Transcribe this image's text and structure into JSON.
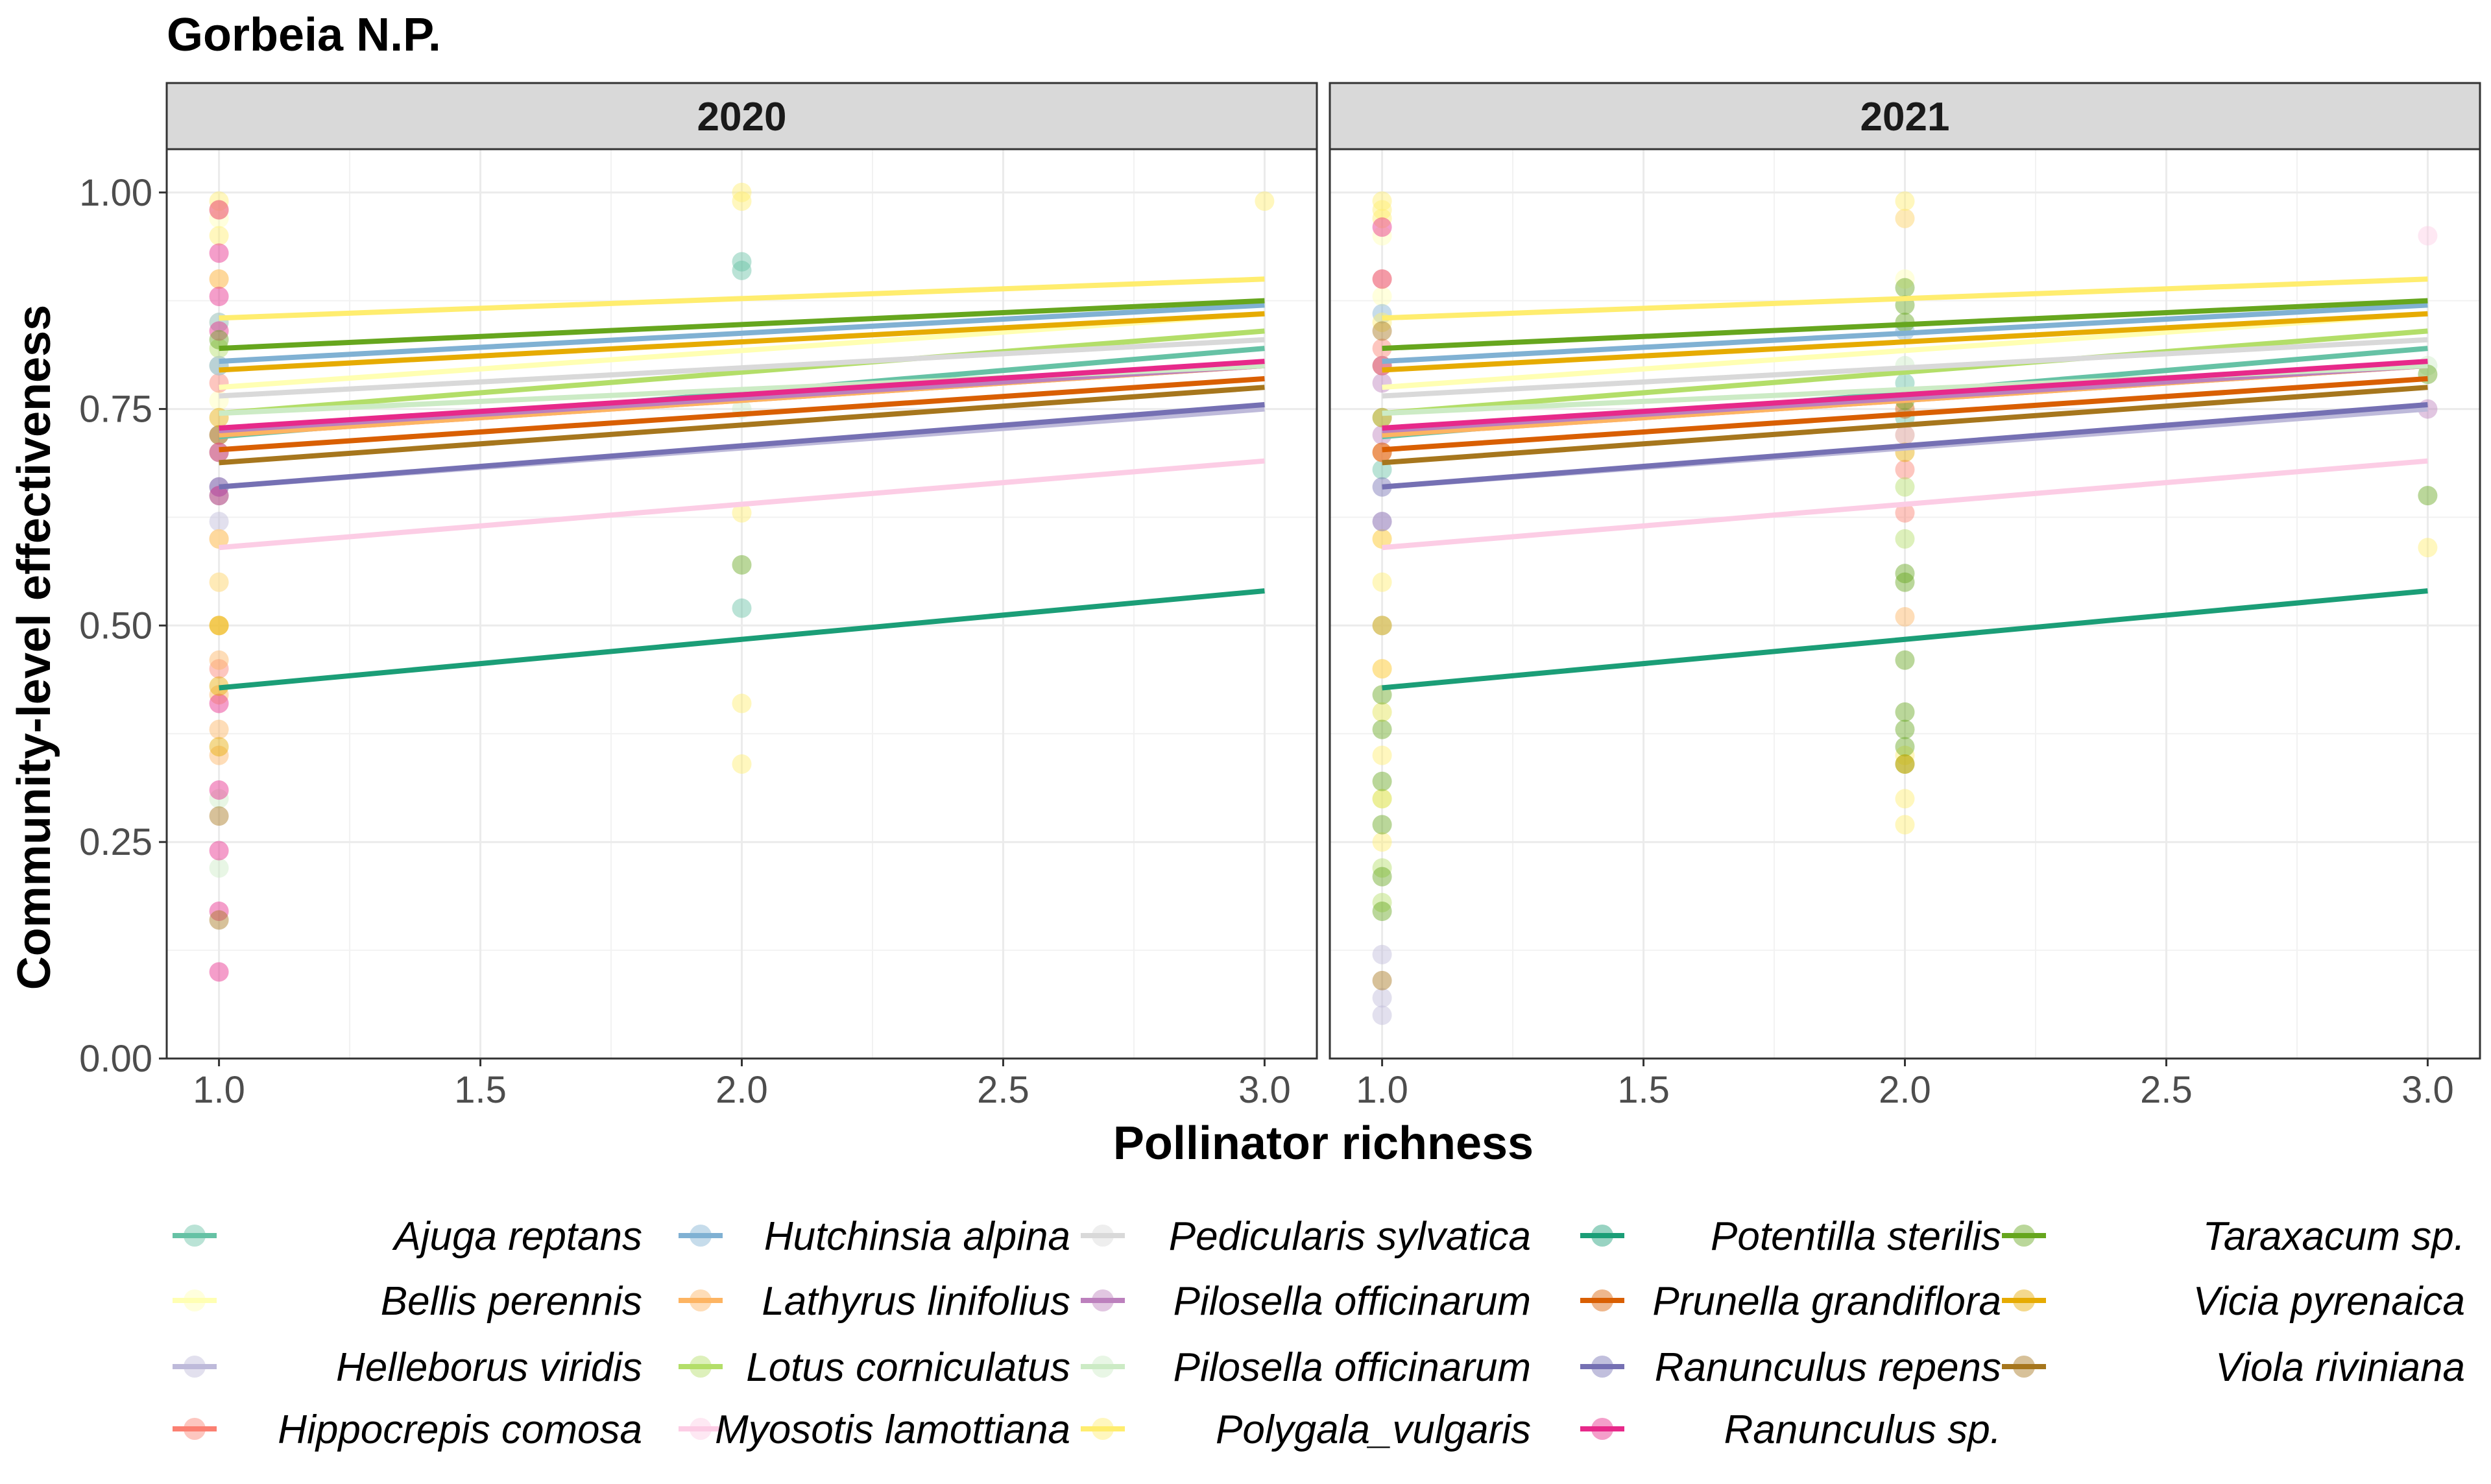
{
  "chart_data": {
    "type": "scatter",
    "title": "Gorbeia N.P.",
    "xlabel": "Pollinator richness",
    "ylabel": "Community-level effectiveness",
    "xlim": [
      0.9,
      3.1
    ],
    "ylim": [
      0,
      1.05
    ],
    "x_ticks": [
      1.0,
      1.5,
      2.0,
      2.5,
      3.0
    ],
    "x_tick_labels": [
      "1.0",
      "1.5",
      "2.0",
      "2.5",
      "3.0"
    ],
    "y_ticks": [
      0.0,
      0.25,
      0.5,
      0.75,
      1.0
    ],
    "y_tick_labels": [
      "0.00",
      "0.25",
      "0.50",
      "0.75",
      "1.00"
    ],
    "grid": true,
    "legend_position": "bottom",
    "panels": [
      "2020",
      "2021"
    ],
    "series": [
      {
        "name": "Ajuga reptans",
        "color": "#66C2A5",
        "fit": [
          0.718,
          0.82
        ],
        "points": {
          "2020": [
            [
              1,
              0.72
            ],
            [
              1,
              0.65
            ],
            [
              1,
              0.8
            ],
            [
              2,
              0.92
            ],
            [
              2,
              0.91
            ],
            [
              2,
              0.52
            ]
          ],
          "2021": [
            [
              1,
              0.74
            ],
            [
              1,
              0.68
            ],
            [
              2,
              0.78
            ],
            [
              2,
              0.74
            ]
          ]
        }
      },
      {
        "name": "Bellis perennis",
        "color": "#FFFFB3",
        "fit": [
          0.775,
          0.86
        ],
        "points": {
          "2020": [
            [
              1,
              0.97
            ],
            [
              1,
              0.85
            ],
            [
              1,
              0.76
            ],
            [
              1,
              0.6
            ]
          ],
          "2021": [
            [
              1,
              0.95
            ],
            [
              1,
              0.88
            ],
            [
              1,
              0.7
            ],
            [
              2,
              0.9
            ]
          ]
        }
      },
      {
        "name": "Helleborus viridis",
        "color": "#BEBADA",
        "fit": [
          0.66,
          0.75
        ],
        "points": {
          "2020": [
            [
              1,
              0.7
            ],
            [
              1,
              0.62
            ]
          ],
          "2021": [
            [
              1,
              0.12
            ],
            [
              1,
              0.07
            ],
            [
              1,
              0.05
            ],
            [
              1,
              0.5
            ]
          ]
        }
      },
      {
        "name": "Hippocrepis comosa",
        "color": "#FB8072",
        "fit": [
          0.72,
          0.8
        ],
        "points": {
          "2020": [
            [
              1,
              0.9
            ],
            [
              1,
              0.78
            ],
            [
              1,
              0.6
            ],
            [
              1,
              0.45
            ]
          ],
          "2021": [
            [
              1,
              0.82
            ],
            [
              1,
              0.7
            ],
            [
              2,
              0.72
            ],
            [
              2,
              0.68
            ],
            [
              2,
              0.63
            ]
          ]
        }
      },
      {
        "name": "Hutchinsia alpina",
        "color": "#80B1D3",
        "fit": [
          0.805,
          0.87
        ],
        "points": {
          "2020": [
            [
              1,
              0.85
            ],
            [
              1,
              0.8
            ]
          ],
          "2021": [
            [
              1,
              0.86
            ],
            [
              1,
              0.8
            ],
            [
              2,
              0.84
            ]
          ]
        }
      },
      {
        "name": "Lathyrus linifolius",
        "color": "#FDB462",
        "fit": [
          0.72,
          0.8
        ],
        "points": {
          "2020": [
            [
              1,
              0.5
            ],
            [
              1,
              0.46
            ],
            [
              1,
              0.42
            ],
            [
              1,
              0.38
            ],
            [
              1,
              0.35
            ]
          ],
          "2021": [
            [
              1,
              0.6
            ],
            [
              1,
              0.45
            ],
            [
              2,
              0.51
            ]
          ]
        }
      },
      {
        "name": "Lotus corniculatus",
        "color": "#B3DE69",
        "fit": [
          0.745,
          0.84
        ],
        "points": {
          "2020": [
            [
              1,
              0.82
            ],
            [
              1,
              0.7
            ]
          ],
          "2021": [
            [
              1,
              0.22
            ],
            [
              1,
              0.18
            ],
            [
              1,
              0.3
            ],
            [
              2,
              0.66
            ],
            [
              2,
              0.6
            ]
          ]
        }
      },
      {
        "name": "Myosotis lamottiana",
        "color": "#FCCDE5",
        "fit": [
          0.59,
          0.69
        ],
        "points": {
          "2020": [
            [
              1,
              0.6
            ],
            [
              1,
              0.55
            ]
          ],
          "2021": [
            [
              1,
              0.62
            ],
            [
              2,
              0.97
            ],
            [
              3,
              0.95
            ]
          ]
        }
      },
      {
        "name": "Pedicularis sylvatica",
        "color": "#D9D9D9",
        "fit": [
          0.765,
          0.83
        ],
        "points": {
          "2020": [
            [
              1,
              0.8
            ],
            [
              1,
              0.7
            ]
          ],
          "2021": [
            [
              1,
              0.8
            ],
            [
              2,
              0.72
            ]
          ]
        }
      },
      {
        "name": "Pilosella officinarum",
        "color": "#BC80BD",
        "fit": [
          0.725,
          0.8
        ],
        "points": {
          "2020": [
            [
              1,
              0.66
            ]
          ],
          "2021": [
            [
              1,
              0.78
            ],
            [
              1,
              0.72
            ],
            [
              3,
              0.75
            ]
          ]
        }
      },
      {
        "name": "Pilosella officinarum",
        "color": "#CCEBC5",
        "fit": [
          0.745,
          0.8
        ],
        "points": {
          "2020": [
            [
              1,
              0.22
            ],
            [
              1,
              0.3
            ],
            [
              2,
              0.75
            ]
          ],
          "2021": [
            [
              1,
              0.5
            ],
            [
              1,
              0.4
            ],
            [
              2,
              0.8
            ],
            [
              3,
              0.8
            ]
          ]
        }
      },
      {
        "name": "Polygala_vulgaris",
        "color": "#FFED6F",
        "fit": [
          0.855,
          0.9
        ],
        "points": {
          "2020": [
            [
              1,
              0.99
            ],
            [
              1,
              0.98
            ],
            [
              1,
              0.95
            ],
            [
              1,
              0.9
            ],
            [
              1,
              0.6
            ],
            [
              1,
              0.55
            ],
            [
              1,
              0.5
            ],
            [
              2,
              1.0
            ],
            [
              2,
              0.99
            ],
            [
              2,
              0.41
            ],
            [
              2,
              0.34
            ],
            [
              2,
              0.63
            ],
            [
              3,
              0.99
            ]
          ],
          "2021": [
            [
              1,
              0.99
            ],
            [
              1,
              0.98
            ],
            [
              1,
              0.97
            ],
            [
              1,
              0.9
            ],
            [
              1,
              0.85
            ],
            [
              1,
              0.8
            ],
            [
              1,
              0.6
            ],
            [
              1,
              0.55
            ],
            [
              1,
              0.45
            ],
            [
              1,
              0.4
            ],
            [
              1,
              0.35
            ],
            [
              1,
              0.3
            ],
            [
              1,
              0.25
            ],
            [
              2,
              0.99
            ],
            [
              2,
              0.97
            ],
            [
              2,
              0.35
            ],
            [
              2,
              0.3
            ],
            [
              2,
              0.27
            ],
            [
              3,
              0.59
            ]
          ]
        }
      },
      {
        "name": "Potentilla sterilis",
        "color": "#1B9E77",
        "fit": [
          0.428,
          0.54
        ],
        "points": {
          "2020": [],
          "2021": []
        }
      },
      {
        "name": "Prunella grandiflora",
        "color": "#D95F02",
        "fit": [
          0.703,
          0.785
        ],
        "points": {
          "2020": [
            [
              1,
              0.72
            ]
          ],
          "2021": [
            [
              1,
              0.7
            ],
            [
              2,
              0.75
            ]
          ]
        }
      },
      {
        "name": "Ranunculus repens",
        "color": "#7570B3",
        "fit": [
          0.66,
          0.755
        ],
        "points": {
          "2020": [
            [
              1,
              0.66
            ]
          ],
          "2021": [
            [
              1,
              0.66
            ],
            [
              1,
              0.62
            ]
          ]
        }
      },
      {
        "name": "Ranunculus sp.",
        "color": "#E7298A",
        "fit": [
          0.728,
          0.805
        ],
        "points": {
          "2020": [
            [
              1,
              0.98
            ],
            [
              1,
              0.93
            ],
            [
              1,
              0.88
            ],
            [
              1,
              0.84
            ],
            [
              1,
              0.7
            ],
            [
              1,
              0.65
            ],
            [
              1,
              0.41
            ],
            [
              1,
              0.31
            ],
            [
              1,
              0.24
            ],
            [
              1,
              0.17
            ],
            [
              1,
              0.1
            ]
          ],
          "2021": [
            [
              1,
              0.96
            ],
            [
              1,
              0.9
            ],
            [
              1,
              0.8
            ]
          ]
        }
      },
      {
        "name": "Taraxacum sp.",
        "color": "#66A61E",
        "fit": [
          0.82,
          0.875
        ],
        "points": {
          "2020": [
            [
              1,
              0.83
            ],
            [
              2,
              0.57
            ]
          ],
          "2021": [
            [
              1,
              0.21
            ],
            [
              1,
              0.17
            ],
            [
              1,
              0.27
            ],
            [
              1,
              0.32
            ],
            [
              1,
              0.38
            ],
            [
              1,
              0.42
            ],
            [
              2,
              0.89
            ],
            [
              2,
              0.87
            ],
            [
              2,
              0.85
            ],
            [
              2,
              0.76
            ],
            [
              2,
              0.56
            ],
            [
              2,
              0.55
            ],
            [
              2,
              0.46
            ],
            [
              2,
              0.4
            ],
            [
              2,
              0.38
            ],
            [
              2,
              0.36
            ],
            [
              2,
              0.34
            ],
            [
              3,
              0.79
            ],
            [
              3,
              0.65
            ]
          ]
        }
      },
      {
        "name": "Vicia pyrenaica",
        "color": "#E6AB02",
        "fit": [
          0.795,
          0.86
        ],
        "points": {
          "2020": [
            [
              1,
              0.74
            ],
            [
              1,
              0.5
            ],
            [
              1,
              0.43
            ],
            [
              1,
              0.36
            ]
          ],
          "2021": [
            [
              1,
              0.74
            ],
            [
              1,
              0.5
            ],
            [
              2,
              0.7
            ],
            [
              2,
              0.34
            ]
          ]
        }
      },
      {
        "name": "Viola riviniana",
        "color": "#A6761D",
        "fit": [
          0.688,
          0.775
        ],
        "points": {
          "2020": [
            [
              1,
              0.16
            ],
            [
              1,
              0.28
            ]
          ],
          "2021": [
            [
              1,
              0.09
            ],
            [
              1,
              0.84
            ]
          ]
        }
      }
    ]
  }
}
